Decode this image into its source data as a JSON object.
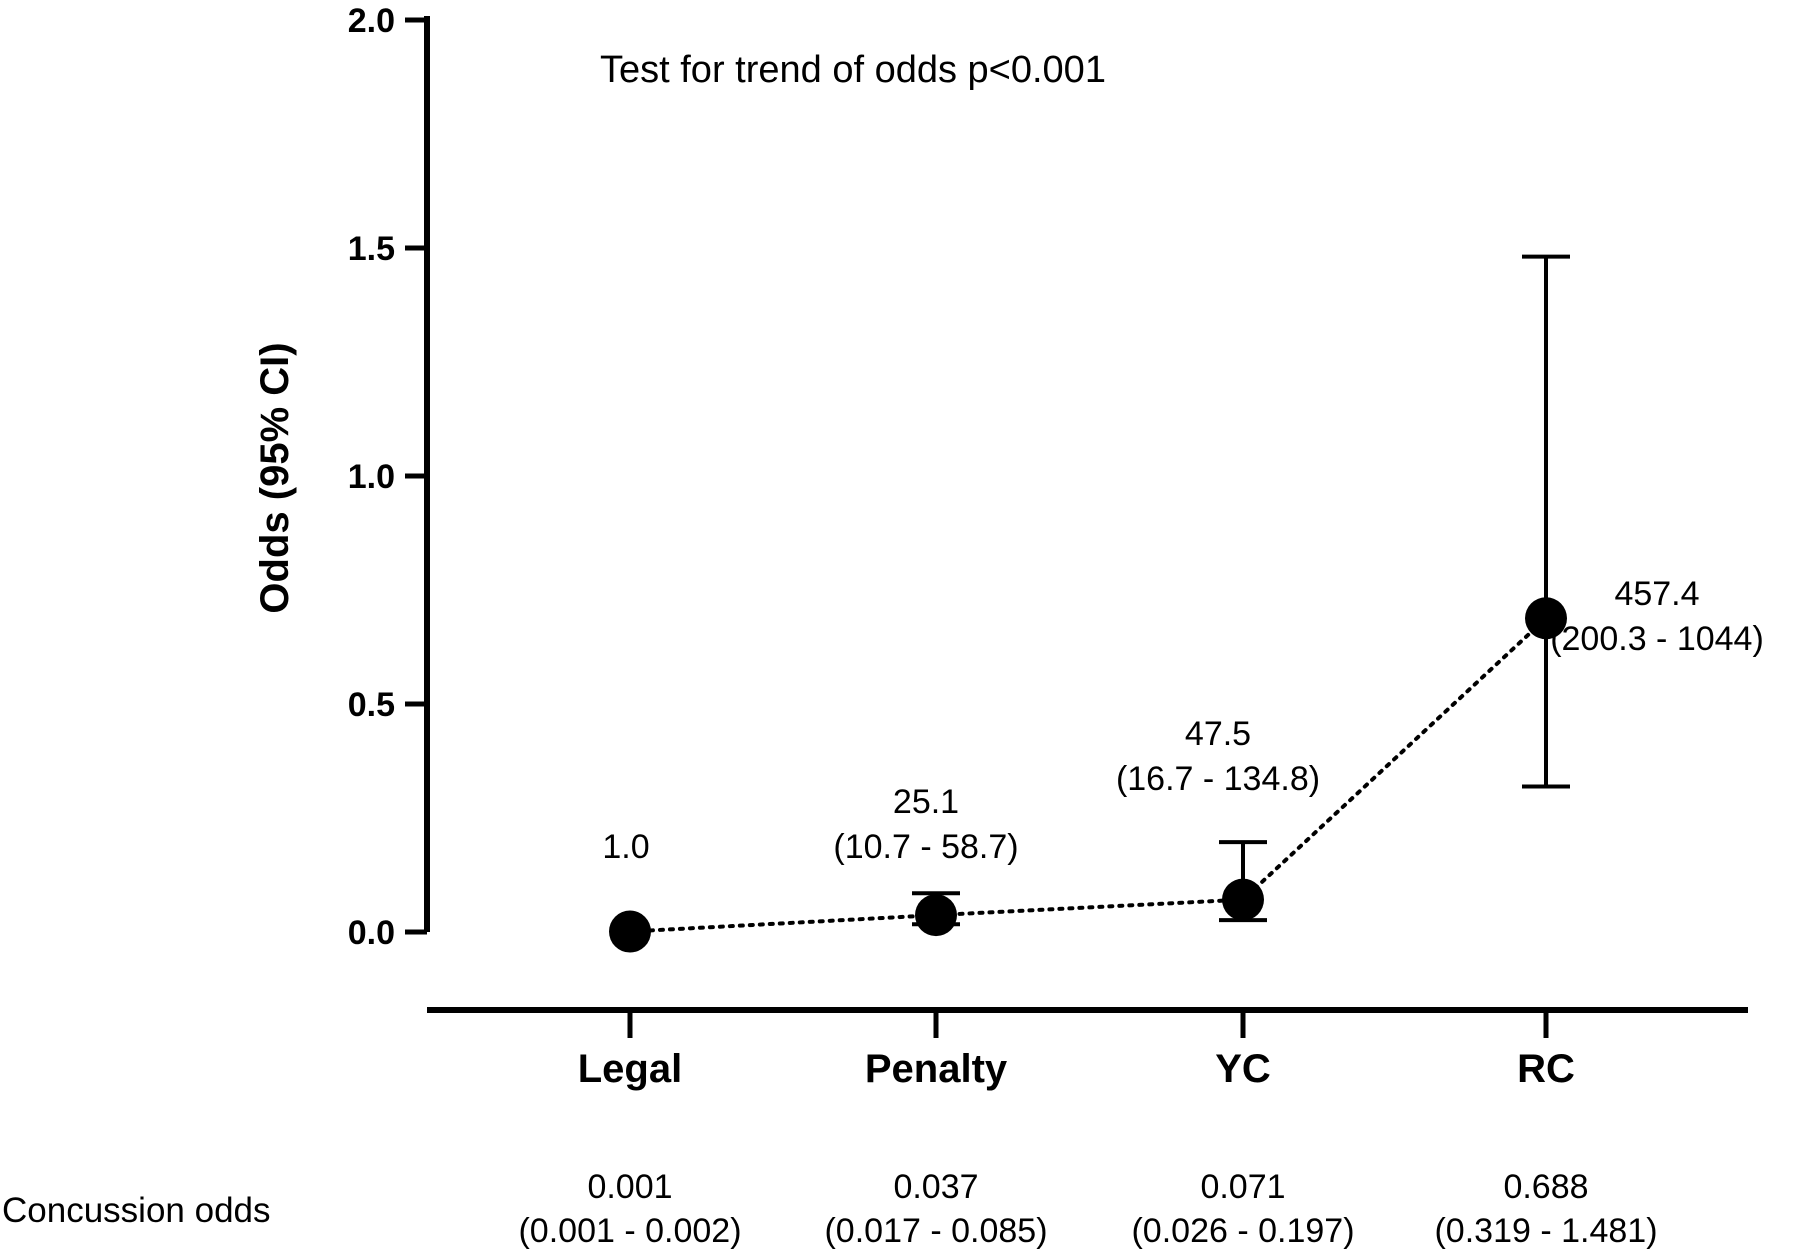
{
  "chart_data": {
    "type": "scatter",
    "title": "",
    "xlabel": "",
    "ylabel": "Odds (95% CI)",
    "ylim": [
      0,
      2.0
    ],
    "yticks": [
      "0.0",
      "0.5",
      "1.0",
      "1.5",
      "2.0"
    ],
    "categories": [
      "Legal",
      "Penalty",
      "YC",
      "RC"
    ],
    "series": [
      {
        "name": "Concussion odds",
        "values": [
          0.001,
          0.037,
          0.071,
          0.688
        ],
        "ci_low": [
          0.001,
          0.017,
          0.026,
          0.319
        ],
        "ci_high": [
          0.002,
          0.085,
          0.197,
          1.481
        ],
        "connector": "dotted"
      }
    ],
    "odds_ratio_labels": [
      {
        "value": "1.0",
        "ci": ""
      },
      {
        "value": "25.1",
        "ci": "(10.7 - 58.7)"
      },
      {
        "value": "47.5",
        "ci": "(16.7 - 134.8)"
      },
      {
        "value": "457.4",
        "ci": "(200.3 - 1044)"
      }
    ],
    "annotation": "Test for trend of odds p<0.001",
    "table_row_label": "Concussion odds",
    "table_values": [
      {
        "value": "0.001",
        "ci": "(0.001 - 0.002)"
      },
      {
        "value": "0.037",
        "ci": "(0.017 - 0.085)"
      },
      {
        "value": "0.071",
        "ci": "(0.026 - 0.197)"
      },
      {
        "value": "0.688",
        "ci": "(0.319 - 1.481)"
      }
    ],
    "grid": false,
    "legend": "none"
  },
  "colors": {
    "axis": "#000000",
    "marker": "#000000",
    "background": "#ffffff"
  }
}
